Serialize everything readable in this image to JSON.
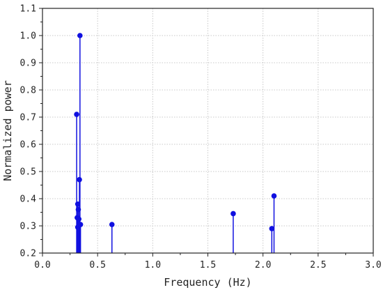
{
  "chart_data": {
    "type": "stem",
    "xlabel": "Frequency (Hz)",
    "ylabel": "Normalized power",
    "xlim": [
      0.0,
      3.0
    ],
    "ylim": [
      0.2,
      1.1
    ],
    "xticks": [
      "0.0",
      "0.5",
      "1.0",
      "1.5",
      "2.0",
      "2.5",
      "3.0"
    ],
    "yticks": [
      "0.2",
      "0.3",
      "0.4",
      "0.5",
      "0.6",
      "0.7",
      "0.8",
      "0.9",
      "1.0",
      "1.1"
    ],
    "grid": true,
    "color": "#1010e0",
    "points": [
      {
        "x": 0.31,
        "y": 0.71
      },
      {
        "x": 0.32,
        "y": 0.38
      },
      {
        "x": 0.315,
        "y": 0.33
      },
      {
        "x": 0.32,
        "y": 0.295
      },
      {
        "x": 0.325,
        "y": 0.36
      },
      {
        "x": 0.33,
        "y": 0.325
      },
      {
        "x": 0.335,
        "y": 0.47
      },
      {
        "x": 0.345,
        "y": 0.305
      },
      {
        "x": 0.34,
        "y": 1.0
      },
      {
        "x": 0.63,
        "y": 0.305
      },
      {
        "x": 1.73,
        "y": 0.345
      },
      {
        "x": 2.08,
        "y": 0.29
      },
      {
        "x": 2.1,
        "y": 0.41
      }
    ]
  }
}
